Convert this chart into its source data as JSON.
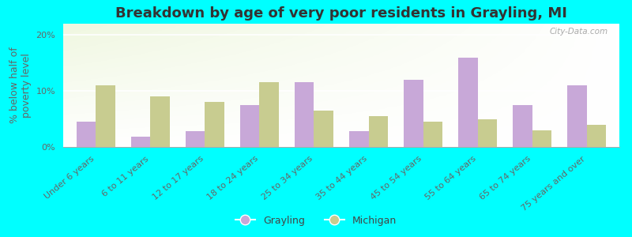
{
  "title": "Breakdown by age of very poor residents in Grayling, MI",
  "ylabel": "% below half of\npoverty level",
  "categories": [
    "Under 6 years",
    "6 to 11 years",
    "12 to 17 years",
    "18 to 24 years",
    "25 to 34 years",
    "35 to 44 years",
    "45 to 54 years",
    "55 to 64 years",
    "65 to 74 years",
    "75 years and over"
  ],
  "grayling": [
    4.5,
    1.8,
    2.8,
    7.5,
    11.5,
    2.8,
    12.0,
    16.0,
    7.5,
    11.0
  ],
  "michigan": [
    11.0,
    9.0,
    8.0,
    11.5,
    6.5,
    5.5,
    4.5,
    5.0,
    3.0,
    4.0
  ],
  "grayling_color": "#c8a8d8",
  "michigan_color": "#c8cc90",
  "background_color": "#00ffff",
  "ylim": [
    0,
    22
  ],
  "yticks": [
    0,
    10,
    20
  ],
  "ytick_labels": [
    "0%",
    "10%",
    "20%"
  ],
  "title_fontsize": 13,
  "axis_label_fontsize": 9,
  "tick_fontsize": 8,
  "legend_fontsize": 9,
  "watermark": "City-Data.com"
}
